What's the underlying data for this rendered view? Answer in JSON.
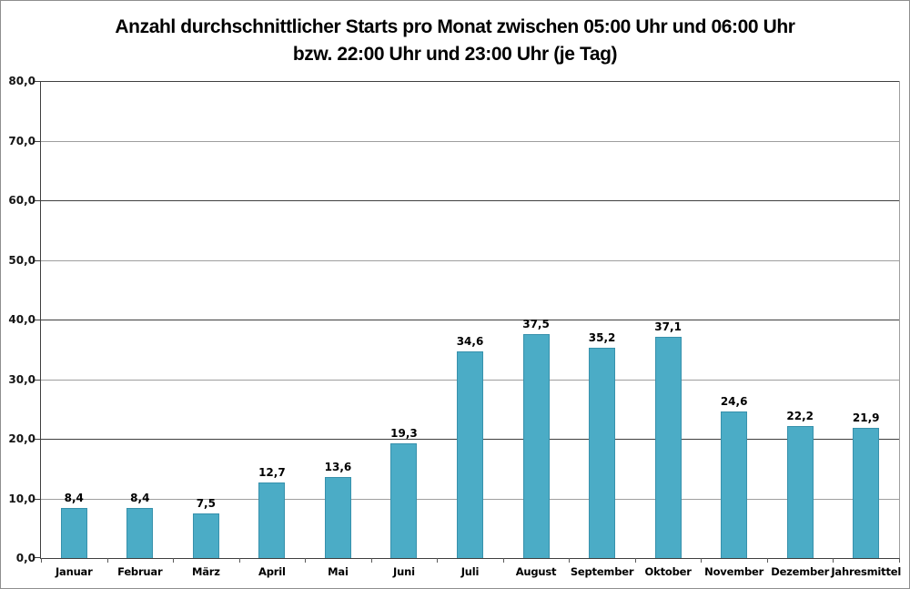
{
  "chart": {
    "title_line1": "Anzahl durchschnittlicher Starts pro Monat zwischen 05:00 Uhr und 06:00 Uhr",
    "title_line2": "bzw. 22:00 Uhr und 23:00 Uhr (je Tag)"
  },
  "chart_data": {
    "type": "bar",
    "title": "Anzahl durchschnittlicher Starts pro Monat zwischen 05:00 Uhr und 06:00 Uhr bzw. 22:00 Uhr und 23:00 Uhr (je Tag)",
    "categories": [
      "Januar",
      "Februar",
      "März",
      "April",
      "Mai",
      "Juni",
      "Juli",
      "August",
      "September",
      "Oktober",
      "November",
      "Dezember",
      "Jahresmittel"
    ],
    "values": [
      8.4,
      8.4,
      7.5,
      12.7,
      13.6,
      19.3,
      34.6,
      37.5,
      35.2,
      37.1,
      24.6,
      22.2,
      21.9
    ],
    "value_labels": [
      "8,4",
      "8,4",
      "7,5",
      "12,7",
      "13,6",
      "19,3",
      "34,6",
      "37,5",
      "35,2",
      "37,1",
      "24,6",
      "22,2",
      "21,9"
    ],
    "xlabel": "",
    "ylabel": "",
    "ylim": [
      0,
      80
    ],
    "ytick_step": 10,
    "ytick_labels": [
      "0,0",
      "10,0",
      "20,0",
      "30,0",
      "40,0",
      "50,0",
      "60,0",
      "70,0",
      "80,0"
    ],
    "grid": true,
    "legend": "none",
    "bar_color": "#4BACC6",
    "bar_border_color": "#3791AC",
    "gridline_color_major": "#9e9e9e",
    "gridline_color_dark": "#3f3f3f",
    "axis_color": "#3f3f3f",
    "label_color": "#000000"
  }
}
